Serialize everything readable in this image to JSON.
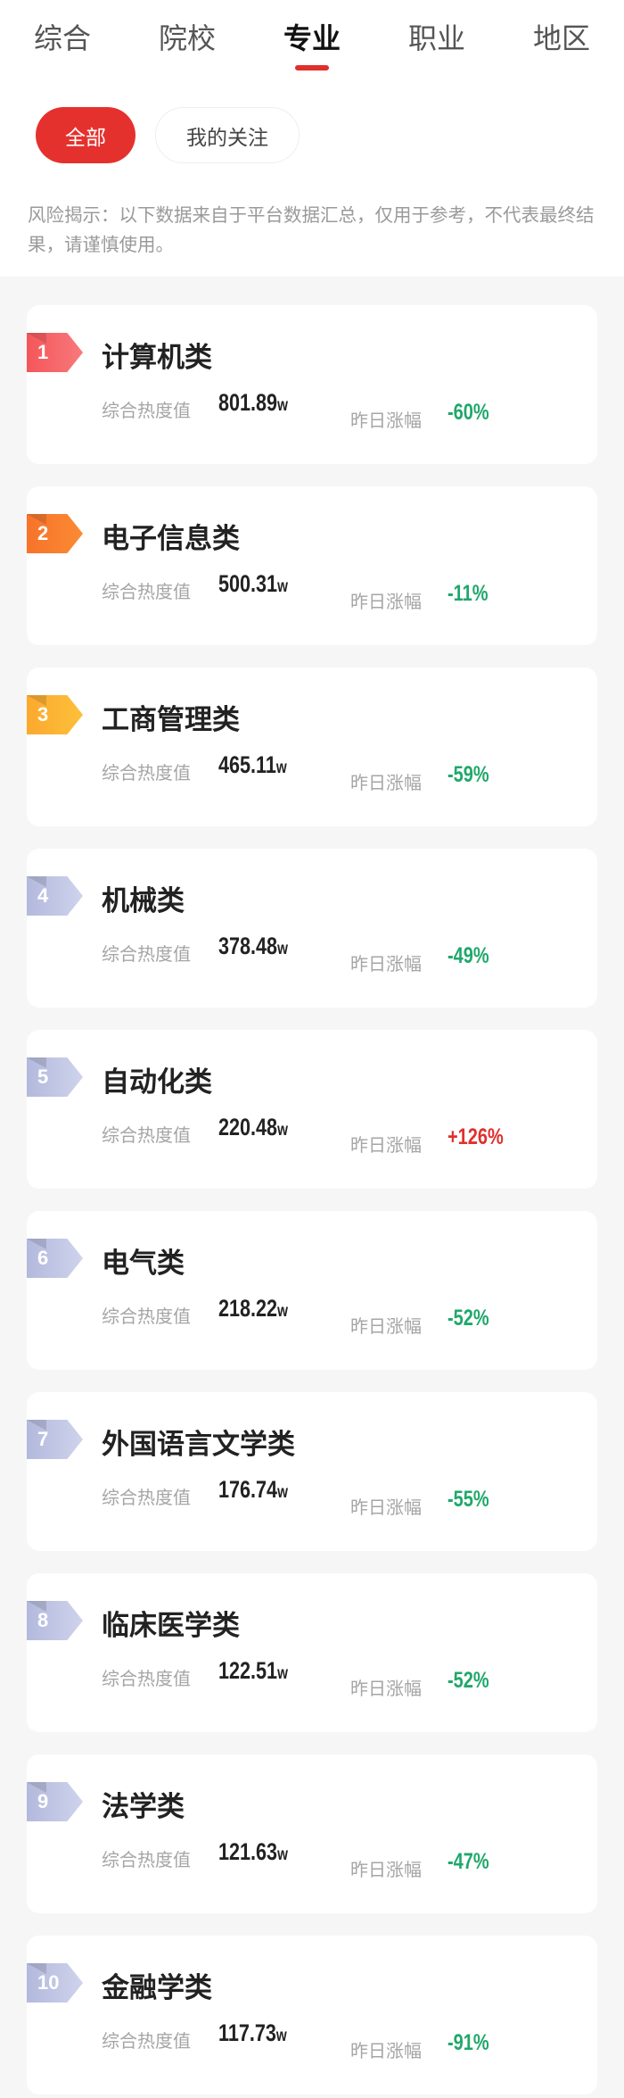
{
  "tabs": [
    {
      "label": "综合"
    },
    {
      "label": "院校"
    },
    {
      "label": "专业",
      "active": true
    },
    {
      "label": "职业"
    },
    {
      "label": "地区"
    }
  ],
  "filters": {
    "all": "全部",
    "following": "我的关注"
  },
  "risk_notice": "风险揭示：以下数据来自于平台数据汇总，仅用于参考，不代表最终结果，请谨慎使用。",
  "labels": {
    "heat": "综合热度值",
    "change": "昨日涨幅",
    "unit": "w"
  },
  "colors": {
    "accent": "#e5312d",
    "down": "#1fa86a",
    "up": "#e0302c",
    "rank1": "#f5565a",
    "rank2": "#f7732a",
    "rank3": "#fba92f",
    "rank_other": "#b9bfe0"
  },
  "items": [
    {
      "rank": "1",
      "name": "计算机类",
      "heat": "801.89",
      "change": "-60%"
    },
    {
      "rank": "2",
      "name": "电子信息类",
      "heat": "500.31",
      "change": "-11%"
    },
    {
      "rank": "3",
      "name": "工商管理类",
      "heat": "465.11",
      "change": "-59%"
    },
    {
      "rank": "4",
      "name": "机械类",
      "heat": "378.48",
      "change": "-49%"
    },
    {
      "rank": "5",
      "name": "自动化类",
      "heat": "220.48",
      "change": "+126%"
    },
    {
      "rank": "6",
      "name": "电气类",
      "heat": "218.22",
      "change": "-52%"
    },
    {
      "rank": "7",
      "name": "外国语言文学类",
      "heat": "176.74",
      "change": "-55%"
    },
    {
      "rank": "8",
      "name": "临床医学类",
      "heat": "122.51",
      "change": "-52%"
    },
    {
      "rank": "9",
      "name": "法学类",
      "heat": "121.63",
      "change": "-47%"
    },
    {
      "rank": "10",
      "name": "金融学类",
      "heat": "117.73",
      "change": "-91%"
    }
  ]
}
